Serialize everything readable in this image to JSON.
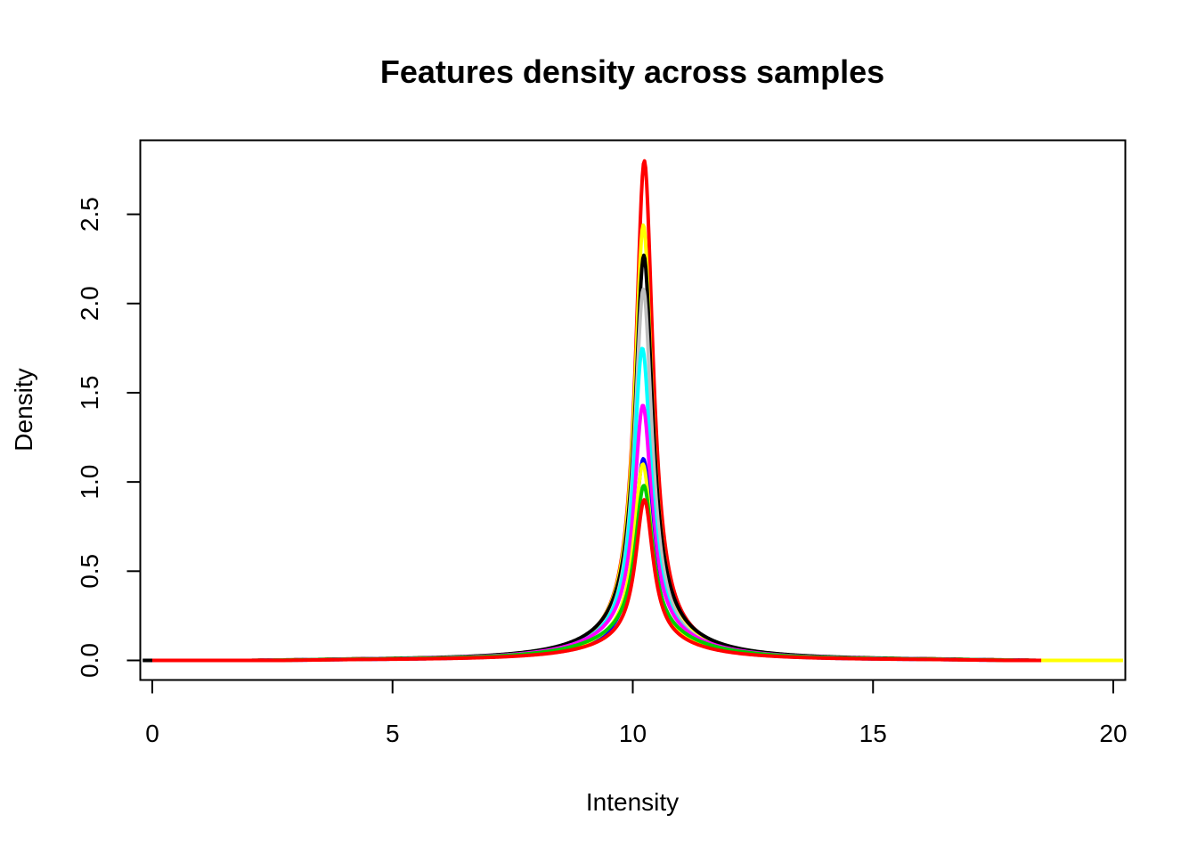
{
  "chart_data": {
    "type": "line",
    "title": "Features density across samples",
    "xlabel": "Intensity",
    "ylabel": "Density",
    "xlim": [
      -0.25,
      20.25
    ],
    "ylim": [
      0.0,
      2.8
    ],
    "x_ticks": [
      0,
      5,
      10,
      15,
      20
    ],
    "x_tick_labels": [
      "0",
      "5",
      "10",
      "15",
      "20"
    ],
    "y_ticks": [
      0.0,
      0.5,
      1.0,
      1.5,
      2.0,
      2.5
    ],
    "y_tick_labels": [
      "0.0",
      "0.5",
      "1.0",
      "1.5",
      "2.0",
      "2.5"
    ],
    "grid": false,
    "legend": "none",
    "series": [
      {
        "color": "#ff0000",
        "peak_x": 10.24,
        "peak_y": 2.8,
        "x_range": [
          0.0,
          20.0
        ]
      },
      {
        "color": "#ffff00",
        "peak_x": 10.22,
        "peak_y": 2.44,
        "x_range": [
          1.0,
          20.2
        ]
      },
      {
        "color": "#000000",
        "peak_x": 10.23,
        "peak_y": 2.27,
        "x_range": [
          -0.2,
          18.5
        ]
      },
      {
        "color": "#bebebe",
        "peak_x": 10.22,
        "peak_y": 2.08,
        "x_range": [
          1.0,
          18.0
        ]
      },
      {
        "color": "#00ffff",
        "peak_x": 10.2,
        "peak_y": 1.75,
        "x_range": [
          1.0,
          19.8
        ]
      },
      {
        "color": "#ff00ff",
        "peak_x": 10.21,
        "peak_y": 1.43,
        "x_range": [
          0.8,
          18.5
        ]
      },
      {
        "color": "#0000ff",
        "peak_x": 10.22,
        "peak_y": 1.13,
        "x_range": [
          1.0,
          18.5
        ]
      },
      {
        "color": "#ffff00",
        "peak_x": 10.21,
        "peak_y": 1.1,
        "x_range": [
          1.0,
          20.2
        ]
      },
      {
        "color": "#00cd00",
        "peak_x": 10.23,
        "peak_y": 0.98,
        "x_range": [
          1.0,
          18.0
        ]
      },
      {
        "color": "#ff0000",
        "peak_x": 10.24,
        "peak_y": 0.9,
        "x_range": [
          0.0,
          18.5
        ]
      }
    ]
  }
}
